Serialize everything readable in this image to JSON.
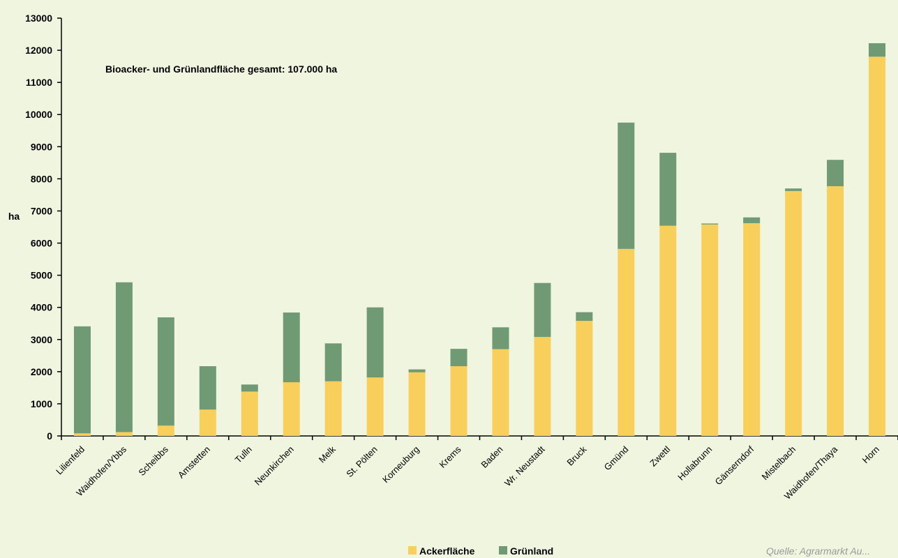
{
  "chart_data": {
    "type": "bar",
    "stacked": true,
    "ylabel": "ha",
    "ylim": [
      0,
      13000
    ],
    "y_ticks": [
      0,
      1000,
      2000,
      3000,
      4000,
      5000,
      6000,
      7000,
      8000,
      9000,
      10000,
      11000,
      12000,
      13000
    ],
    "annotation": "Bioacker- und Grünlandfläche gesamt: 107.000 ha",
    "source": "Quelle: Agrarmarkt Au...",
    "legend_position": "bottom",
    "categories": [
      "Lilienfeld",
      "Waidhofen/Ybbs",
      "Scheibbs",
      "Amstetten",
      "Tulln",
      "Neunkirchen",
      "Melk",
      "St. Pölten",
      "Korneuburg",
      "Krems",
      "Baden",
      "Wr. Neustadt",
      "Bruck",
      "Gmünd",
      "Zwettl",
      "Hollabrunn",
      "Gänserndorf",
      "Mistelbach",
      "Waidhofen/Thaya",
      "Horn"
    ],
    "series": [
      {
        "name": "Ackerfläche",
        "color": "#f9cf5c",
        "values": [
          80,
          120,
          320,
          820,
          1380,
          1670,
          1700,
          1820,
          1980,
          2170,
          2700,
          3080,
          3580,
          5820,
          6540,
          6580,
          6620,
          7620,
          7770,
          11800
        ]
      },
      {
        "name": "Grünland",
        "color": "#6f9a73",
        "values": [
          3330,
          4660,
          3370,
          1350,
          220,
          2170,
          1180,
          2180,
          90,
          540,
          680,
          1680,
          270,
          3930,
          2270,
          30,
          180,
          80,
          820,
          420
        ]
      }
    ]
  }
}
